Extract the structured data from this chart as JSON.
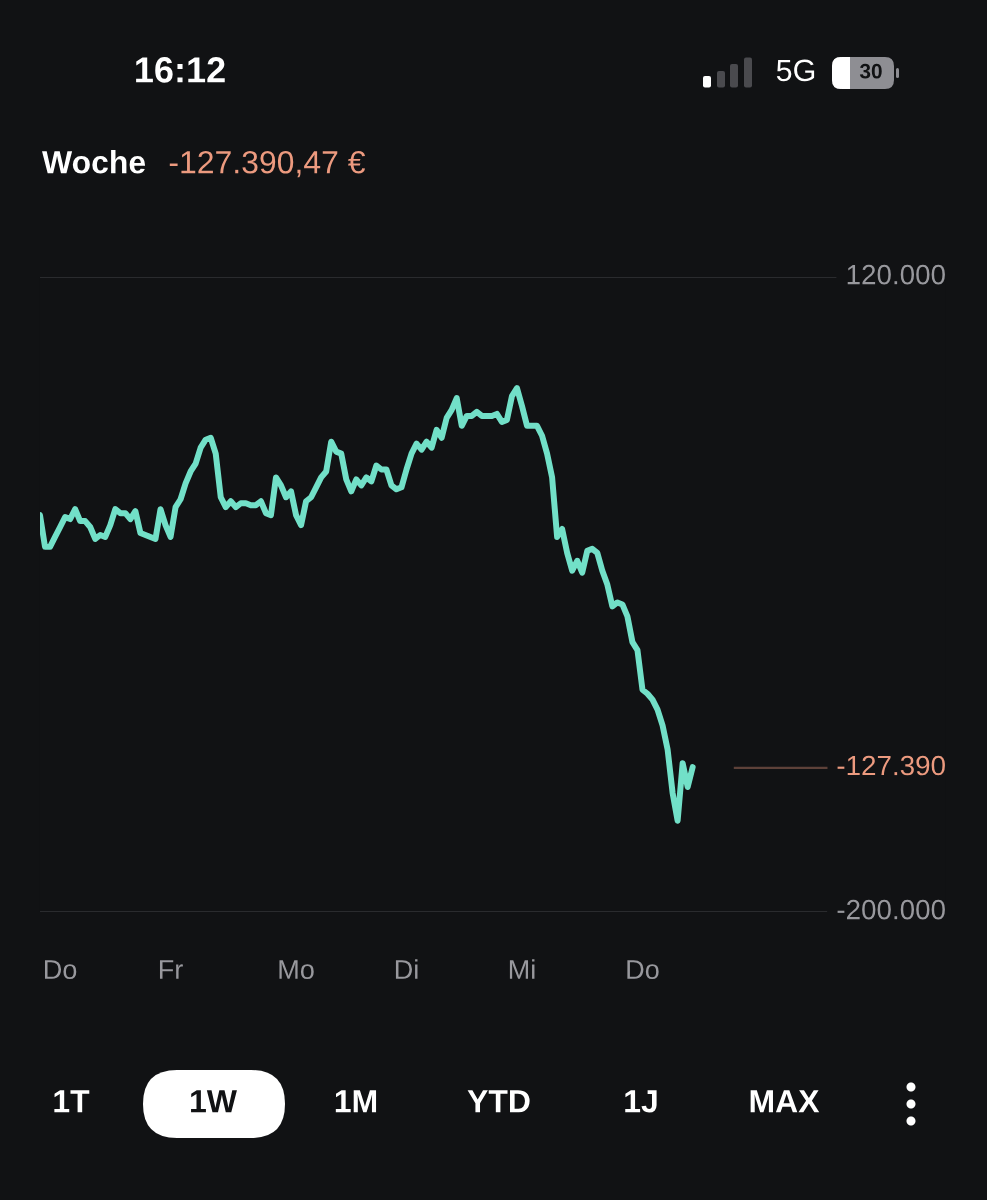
{
  "chart_data": {
    "type": "line",
    "title": "Woche",
    "subtitle": "-127.390,47 €",
    "categories": [
      null,
      null,
      null,
      null,
      "Do",
      null,
      null,
      null,
      null,
      null,
      null,
      null,
      null,
      null,
      null,
      null,
      null,
      null,
      null,
      null,
      null,
      null,
      null,
      null,
      null,
      null,
      "Fr",
      null,
      null,
      null,
      null,
      null,
      null,
      null,
      null,
      null,
      null,
      null,
      null,
      null,
      null,
      null,
      null,
      null,
      null,
      null,
      null,
      null,
      null,
      null,
      null,
      "Mo",
      null,
      null,
      null,
      null,
      null,
      null,
      null,
      null,
      null,
      null,
      null,
      null,
      null,
      null,
      null,
      null,
      null,
      null,
      null,
      null,
      null,
      "Di",
      null,
      null,
      null,
      null,
      null,
      null,
      null,
      null,
      null,
      null,
      null,
      null,
      null,
      null,
      null,
      null,
      null,
      null,
      null,
      null,
      null,
      null,
      "Mi",
      null,
      null,
      null,
      null,
      null,
      null,
      null,
      null,
      null,
      null,
      null,
      null,
      null,
      null,
      null,
      null,
      null,
      null,
      null,
      null,
      null,
      null,
      null,
      "Do",
      null,
      null,
      null,
      null,
      null,
      null,
      null,
      null,
      null,
      null
    ],
    "series": [
      {
        "color": "#72e0c8",
        "values": [
          0,
          -16000,
          -16000,
          -11000,
          -6000,
          -1000,
          -2000,
          3000,
          -3000,
          -3000,
          -6000,
          -12000,
          -10000,
          -11000,
          -5000,
          3000,
          1000,
          1000,
          -2000,
          2000,
          -9000,
          -10000,
          -11000,
          -12000,
          3000,
          -5000,
          -11000,
          4000,
          8000,
          16000,
          22000,
          26000,
          34000,
          38000,
          39000,
          31000,
          9000,
          4000,
          7000,
          4000,
          6000,
          6000,
          5000,
          5000,
          7000,
          1000,
          0,
          19000,
          15000,
          9000,
          12000,
          0,
          -5000,
          7000,
          9000,
          14000,
          19000,
          22000,
          37000,
          32000,
          31000,
          18000,
          12000,
          18000,
          15000,
          19000,
          17000,
          25000,
          23000,
          23000,
          15000,
          13000,
          14000,
          23000,
          31000,
          36000,
          33000,
          37000,
          34000,
          43000,
          39000,
          49000,
          53000,
          59000,
          45000,
          50000,
          50000,
          52000,
          50000,
          50000,
          50000,
          51000,
          47000,
          48000,
          60000,
          64000,
          55000,
          45000,
          45000,
          45000,
          40000,
          31000,
          19000,
          -11000,
          -7000,
          -19000,
          -28000,
          -23000,
          -29000,
          -18000,
          -17000,
          -19000,
          -28000,
          -35000,
          -46000,
          -44000,
          -45000,
          -51000,
          -64000,
          -68000,
          -88000,
          -90000,
          -93000,
          -98000,
          -106000,
          -118000,
          -140000,
          -154000,
          -125000,
          -137000,
          -127000
        ]
      }
    ],
    "ylim": [
      -200000,
      120000
    ],
    "yticks": [
      {
        "value": 120000,
        "label": "120.000"
      },
      {
        "value": -200000,
        "label": "-200.000"
      }
    ],
    "grid": "y",
    "line_style": "solid",
    "ref_lines": [
      {
        "axis": "y",
        "value": -127390,
        "label": "-127.390",
        "color": "#ec9a7f"
      }
    ],
    "annotations": [
      "16:12",
      "5G",
      "30",
      "1T",
      "1W",
      "1M",
      "YTD",
      "1J",
      "MAX"
    ]
  }
}
